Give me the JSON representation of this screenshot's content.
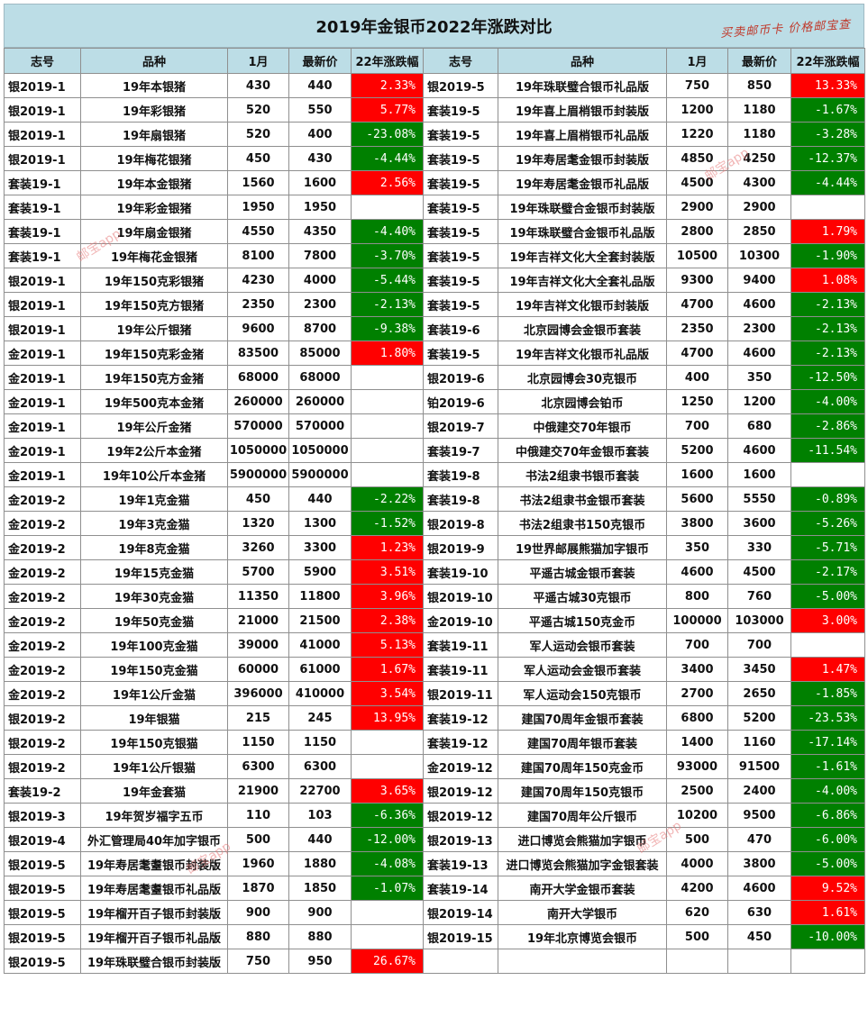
{
  "title": "2019年金银币2022年涨跌对比",
  "slogan": "买卖邮币卡 价格邮宝查",
  "watermark": "邮宝app",
  "columns": [
    "志号",
    "品种",
    "1月",
    "最新价",
    "22年涨跌幅",
    "志号",
    "品种",
    "1月",
    "最新价",
    "22年涨跌幅"
  ],
  "colors": {
    "up": "#ff0000",
    "down": "#008000",
    "header": "#bcdde6"
  },
  "left": [
    [
      "银2019-1",
      "19年本银猪",
      "430",
      "440",
      "2.33%"
    ],
    [
      "银2019-1",
      "19年彩银猪",
      "520",
      "550",
      "5.77%"
    ],
    [
      "银2019-1",
      "19年扇银猪",
      "520",
      "400",
      "-23.08%"
    ],
    [
      "银2019-1",
      "19年梅花银猪",
      "450",
      "430",
      "-4.44%"
    ],
    [
      "套装19-1",
      "19年本金银猪",
      "1560",
      "1600",
      "2.56%"
    ],
    [
      "套装19-1",
      "19年彩金银猪",
      "1950",
      "1950",
      ""
    ],
    [
      "套装19-1",
      "19年扇金银猪",
      "4550",
      "4350",
      "-4.40%"
    ],
    [
      "套装19-1",
      "19年梅花金银猪",
      "8100",
      "7800",
      "-3.70%"
    ],
    [
      "银2019-1",
      "19年150克彩银猪",
      "4230",
      "4000",
      "-5.44%"
    ],
    [
      "银2019-1",
      "19年150克方银猪",
      "2350",
      "2300",
      "-2.13%"
    ],
    [
      "银2019-1",
      "19年公斤银猪",
      "9600",
      "8700",
      "-9.38%"
    ],
    [
      "金2019-1",
      "19年150克彩金猪",
      "83500",
      "85000",
      "1.80%"
    ],
    [
      "金2019-1",
      "19年150克方金猪",
      "68000",
      "68000",
      ""
    ],
    [
      "金2019-1",
      "19年500克本金猪",
      "260000",
      "260000",
      ""
    ],
    [
      "金2019-1",
      "19年公斤金猪",
      "570000",
      "570000",
      ""
    ],
    [
      "金2019-1",
      "19年2公斤本金猪",
      "1050000",
      "1050000",
      ""
    ],
    [
      "金2019-1",
      "19年10公斤本金猪",
      "5900000",
      "5900000",
      ""
    ],
    [
      "金2019-2",
      "19年1克金猫",
      "450",
      "440",
      "-2.22%"
    ],
    [
      "金2019-2",
      "19年3克金猫",
      "1320",
      "1300",
      "-1.52%"
    ],
    [
      "金2019-2",
      "19年8克金猫",
      "3260",
      "3300",
      "1.23%"
    ],
    [
      "金2019-2",
      "19年15克金猫",
      "5700",
      "5900",
      "3.51%"
    ],
    [
      "金2019-2",
      "19年30克金猫",
      "11350",
      "11800",
      "3.96%"
    ],
    [
      "金2019-2",
      "19年50克金猫",
      "21000",
      "21500",
      "2.38%"
    ],
    [
      "金2019-2",
      "19年100克金猫",
      "39000",
      "41000",
      "5.13%"
    ],
    [
      "金2019-2",
      "19年150克金猫",
      "60000",
      "61000",
      "1.67%"
    ],
    [
      "金2019-2",
      "19年1公斤金猫",
      "396000",
      "410000",
      "3.54%"
    ],
    [
      "银2019-2",
      "19年银猫",
      "215",
      "245",
      "13.95%"
    ],
    [
      "银2019-2",
      "19年150克银猫",
      "1150",
      "1150",
      ""
    ],
    [
      "银2019-2",
      "19年1公斤银猫",
      "6300",
      "6300",
      ""
    ],
    [
      "套装19-2",
      "19年金套猫",
      "21900",
      "22700",
      "3.65%"
    ],
    [
      "银2019-3",
      "19年贺岁福字五币",
      "110",
      "103",
      "-6.36%"
    ],
    [
      "银2019-4",
      "外汇管理局40年加字银币",
      "500",
      "440",
      "-12.00%"
    ],
    [
      "银2019-5",
      "19年寿居耄耋银币封装版",
      "1960",
      "1880",
      "-4.08%"
    ],
    [
      "银2019-5",
      "19年寿居耄耋银币礼品版",
      "1870",
      "1850",
      "-1.07%"
    ],
    [
      "银2019-5",
      "19年榴开百子银币封装版",
      "900",
      "900",
      ""
    ],
    [
      "银2019-5",
      "19年榴开百子银币礼品版",
      "880",
      "880",
      ""
    ],
    [
      "银2019-5",
      "19年珠联璧合银币封装版",
      "750",
      "950",
      "26.67%"
    ]
  ],
  "right": [
    [
      "银2019-5",
      "19年珠联璧合银币礼品版",
      "750",
      "850",
      "13.33%"
    ],
    [
      "套装19-5",
      "19年喜上眉梢银币封装版",
      "1200",
      "1180",
      "-1.67%"
    ],
    [
      "套装19-5",
      "19年喜上眉梢银币礼品版",
      "1220",
      "1180",
      "-3.28%"
    ],
    [
      "套装19-5",
      "19年寿居耄金银币封装版",
      "4850",
      "4250",
      "-12.37%"
    ],
    [
      "套装19-5",
      "19年寿居耄金银币礼品版",
      "4500",
      "4300",
      "-4.44%"
    ],
    [
      "套装19-5",
      "19年珠联璧合金银币封装版",
      "2900",
      "2900",
      ""
    ],
    [
      "套装19-5",
      "19年珠联璧合金银币礼品版",
      "2800",
      "2850",
      "1.79%"
    ],
    [
      "套装19-5",
      "19年吉祥文化大全套封装版",
      "10500",
      "10300",
      "-1.90%"
    ],
    [
      "套装19-5",
      "19年吉祥文化大全套礼品版",
      "9300",
      "9400",
      "1.08%"
    ],
    [
      "套装19-5",
      "19年吉祥文化银币封装版",
      "4700",
      "4600",
      "-2.13%"
    ],
    [
      "套装19-6",
      "北京园博会金银币套装",
      "2350",
      "2300",
      "-2.13%"
    ],
    [
      "套装19-5",
      "19年吉祥文化银币礼品版",
      "4700",
      "4600",
      "-2.13%"
    ],
    [
      "银2019-6",
      "北京园博会30克银币",
      "400",
      "350",
      "-12.50%"
    ],
    [
      "铂2019-6",
      "北京园博会铂币",
      "1250",
      "1200",
      "-4.00%"
    ],
    [
      "银2019-7",
      "中俄建交70年银币",
      "700",
      "680",
      "-2.86%"
    ],
    [
      "套装19-7",
      "中俄建交70年金银币套装",
      "5200",
      "4600",
      "-11.54%"
    ],
    [
      "套装19-8",
      "书法2组隶书银币套装",
      "1600",
      "1600",
      ""
    ],
    [
      "套装19-8",
      "书法2组隶书金银币套装",
      "5600",
      "5550",
      "-0.89%"
    ],
    [
      "银2019-8",
      "书法2组隶书150克银币",
      "3800",
      "3600",
      "-5.26%"
    ],
    [
      "银2019-9",
      "19世界邮展熊猫加字银币",
      "350",
      "330",
      "-5.71%"
    ],
    [
      "套装19-10",
      "平遥古城金银币套装",
      "4600",
      "4500",
      "-2.17%"
    ],
    [
      "银2019-10",
      "平遥古城30克银币",
      "800",
      "760",
      "-5.00%"
    ],
    [
      "金2019-10",
      "平遥古城150克金币",
      "100000",
      "103000",
      "3.00%"
    ],
    [
      "套装19-11",
      "军人运动会银币套装",
      "700",
      "700",
      ""
    ],
    [
      "套装19-11",
      "军人运动会金银币套装",
      "3400",
      "3450",
      "1.47%"
    ],
    [
      "银2019-11",
      "军人运动会150克银币",
      "2700",
      "2650",
      "-1.85%"
    ],
    [
      "套装19-12",
      "建国70周年金银币套装",
      "6800",
      "5200",
      "-23.53%"
    ],
    [
      "套装19-12",
      "建国70周年银币套装",
      "1400",
      "1160",
      "-17.14%"
    ],
    [
      "金2019-12",
      "建国70周年150克金币",
      "93000",
      "91500",
      "-1.61%"
    ],
    [
      "银2019-12",
      "建国70周年150克银币",
      "2500",
      "2400",
      "-4.00%"
    ],
    [
      "银2019-12",
      "建国70周年公斤银币",
      "10200",
      "9500",
      "-6.86%"
    ],
    [
      "银2019-13",
      "进口博览会熊猫加字银币",
      "500",
      "470",
      "-6.00%"
    ],
    [
      "套装19-13",
      "进口博览会熊猫加字金银套装",
      "4000",
      "3800",
      "-5.00%"
    ],
    [
      "套装19-14",
      "南开大学金银币套装",
      "4200",
      "4600",
      "9.52%"
    ],
    [
      "银2019-14",
      "南开大学银币",
      "620",
      "630",
      "1.61%"
    ],
    [
      "银2019-15",
      "19年北京博览会银币",
      "500",
      "450",
      "-10.00%"
    ],
    [
      "",
      "",
      "",
      "",
      ""
    ]
  ]
}
